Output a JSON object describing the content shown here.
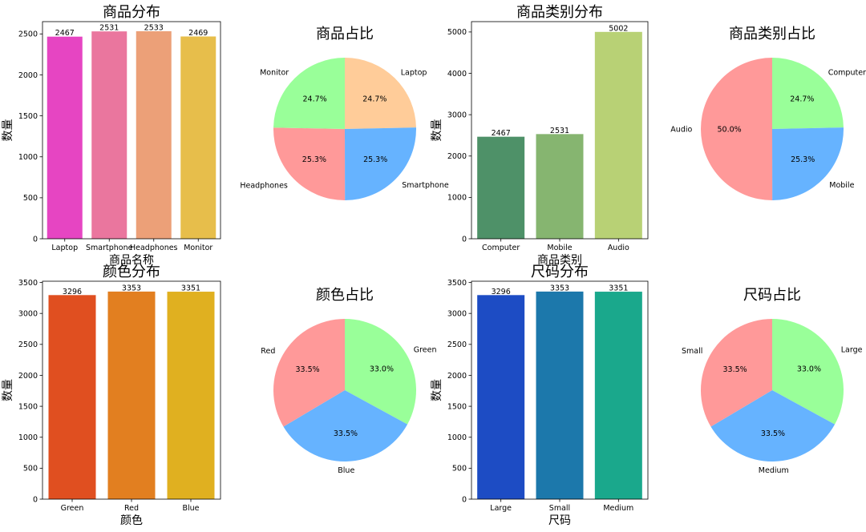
{
  "chart_data": [
    {
      "type": "bar",
      "title": "商品分布",
      "xlabel": "商品名称",
      "ylabel": "数量",
      "categories": [
        "Laptop",
        "Smartphone",
        "Headphones",
        "Monitor"
      ],
      "values": [
        2467,
        2531,
        2533,
        2469
      ],
      "data_labels": [
        "2467",
        "2531",
        "2533",
        "2469"
      ],
      "colors": [
        "#e645c2",
        "#ea769e",
        "#eca078",
        "#e7be4b"
      ],
      "ylim": [
        0,
        2650
      ],
      "yticks": [
        0,
        500,
        1000,
        1500,
        2000,
        2500
      ],
      "ytick_labels": [
        "0",
        "500",
        "1000",
        "1500",
        "2000",
        "2500"
      ]
    },
    {
      "type": "pie",
      "title": "商品占比",
      "labels": [
        "Laptop",
        "Smartphone",
        "Headphones",
        "Monitor"
      ],
      "values": [
        2467,
        2531,
        2533,
        2469
      ],
      "pct_labels": [
        "24.7%",
        "25.3%",
        "25.3%",
        "24.7%"
      ],
      "colors": [
        "#ffcc99",
        "#66b3ff",
        "#ff9999",
        "#99ff99"
      ]
    },
    {
      "type": "bar",
      "title": "商品类别分布",
      "xlabel": "商品类别",
      "ylabel": "数量",
      "categories": [
        "Computer",
        "Mobile",
        "Audio"
      ],
      "values": [
        2467,
        2531,
        5002
      ],
      "data_labels": [
        "2467",
        "2531",
        "5002"
      ],
      "colors": [
        "#4e9168",
        "#86b570",
        "#b8d175"
      ],
      "ylim": [
        0,
        5250
      ],
      "yticks": [
        0,
        1000,
        2000,
        3000,
        4000,
        5000
      ],
      "ytick_labels": [
        "0",
        "1000",
        "2000",
        "3000",
        "4000",
        "5000"
      ]
    },
    {
      "type": "pie",
      "title": "商品类别占比",
      "labels": [
        "Computer",
        "Mobile",
        "Audio"
      ],
      "values": [
        2467,
        2531,
        5002
      ],
      "pct_labels": [
        "24.7%",
        "25.3%",
        "50.0%"
      ],
      "colors": [
        "#99ff99",
        "#66b3ff",
        "#ff9999"
      ]
    },
    {
      "type": "bar",
      "title": "颜色分布",
      "xlabel": "颜色",
      "ylabel": "数量",
      "categories": [
        "Green",
        "Red",
        "Blue"
      ],
      "values": [
        3296,
        3353,
        3351
      ],
      "data_labels": [
        "3296",
        "3353",
        "3351"
      ],
      "colors": [
        "#e04f20",
        "#e27f20",
        "#e0b020"
      ],
      "ylim": [
        0,
        3520
      ],
      "yticks": [
        0,
        500,
        1000,
        1500,
        2000,
        2500,
        3000,
        3500
      ],
      "ytick_labels": [
        "0",
        "500",
        "1000",
        "1500",
        "2000",
        "2500",
        "3000",
        "3500"
      ]
    },
    {
      "type": "pie",
      "title": "颜色占比",
      "labels": [
        "Green",
        "Blue",
        "Red"
      ],
      "values": [
        3296,
        3351,
        3353
      ],
      "pct_labels": [
        "33.0%",
        "33.5%",
        "33.5%"
      ],
      "colors": [
        "#99ff99",
        "#66b3ff",
        "#ff9999"
      ]
    },
    {
      "type": "bar",
      "title": "尺码分布",
      "xlabel": "尺码",
      "ylabel": "数量",
      "categories": [
        "Large",
        "Small",
        "Medium"
      ],
      "values": [
        3296,
        3353,
        3351
      ],
      "data_labels": [
        "3296",
        "3353",
        "3351"
      ],
      "colors": [
        "#1d4cc4",
        "#1c78ab",
        "#1aa88c"
      ],
      "ylim": [
        0,
        3520
      ],
      "yticks": [
        0,
        500,
        1000,
        1500,
        2000,
        2500,
        3000,
        3500
      ],
      "ytick_labels": [
        "0",
        "500",
        "1000",
        "1500",
        "2000",
        "2500",
        "3000",
        "3500"
      ]
    },
    {
      "type": "pie",
      "title": "尺码占比",
      "labels": [
        "Large",
        "Medium",
        "Small"
      ],
      "values": [
        3296,
        3351,
        3353
      ],
      "pct_labels": [
        "33.0%",
        "33.5%",
        "33.5%"
      ],
      "colors": [
        "#99ff99",
        "#66b3ff",
        "#ff9999"
      ]
    }
  ]
}
